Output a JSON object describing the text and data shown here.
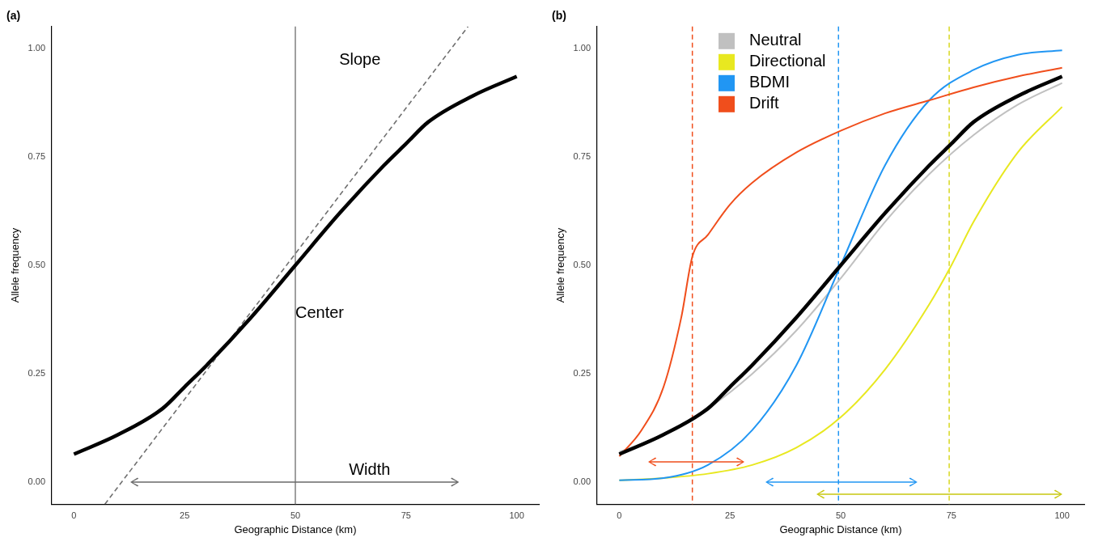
{
  "chart_data": [
    {
      "type": "line",
      "title": "(a)",
      "xlabel": "Geographic Distance (km)",
      "ylabel": "Allele frequency",
      "xlim": [
        -5,
        105
      ],
      "ylim": [
        -0.05,
        1.05
      ],
      "xticks": [
        0,
        25,
        50,
        75,
        100
      ],
      "yticks": [
        {
          "value": 0,
          "label": "0.00"
        },
        {
          "value": 0.25,
          "label": "0.25"
        },
        {
          "value": 0.5,
          "label": "0.50"
        },
        {
          "value": 0.75,
          "label": "0.75"
        },
        {
          "value": 1,
          "label": "1.00"
        }
      ],
      "grid": false,
      "legend": false,
      "series": [
        {
          "color": "#000000",
          "x": [
            0,
            10,
            20,
            25,
            30,
            40,
            50,
            60,
            70,
            75,
            80,
            90,
            100
          ],
          "values": [
            0.065,
            0.11,
            0.17,
            0.22,
            0.27,
            0.38,
            0.5,
            0.62,
            0.73,
            0.78,
            0.83,
            0.89,
            0.935
          ]
        },
        {
          "color": "#707070",
          "line_style": "dashed",
          "x": [
            7,
            89
          ],
          "values": [
            -0.05,
            1.05
          ]
        }
      ],
      "ref_lines": [
        {
          "axis": "x",
          "value": 50,
          "color": "#808080",
          "line_style": "solid"
        }
      ],
      "annotations": [
        "Slope",
        "Center",
        "Width"
      ]
    },
    {
      "type": "line",
      "title": "(b)",
      "xlabel": "Geographic Distance (km)",
      "ylabel": "Allele frequency",
      "xlim": [
        -5,
        105
      ],
      "ylim": [
        -0.05,
        1.05
      ],
      "xticks": [
        0,
        25,
        50,
        75,
        100
      ],
      "yticks": [
        {
          "value": 0,
          "label": "0.00"
        },
        {
          "value": 0.25,
          "label": "0.25"
        },
        {
          "value": 0.5,
          "label": "0.50"
        },
        {
          "value": 0.75,
          "label": "0.75"
        },
        {
          "value": 1,
          "label": "1.00"
        }
      ],
      "grid": false,
      "legend": "top left",
      "series": [
        {
          "name": "Neutral",
          "color": "#c0c0c0",
          "x": [
            0,
            10,
            20,
            30,
            40,
            50,
            60,
            70,
            80,
            90,
            100
          ],
          "values": [
            0.07,
            0.11,
            0.17,
            0.25,
            0.35,
            0.47,
            0.6,
            0.71,
            0.8,
            0.87,
            0.92
          ]
        },
        {
          "name": "Directional",
          "color": "#e8e820",
          "x": [
            0,
            10,
            20,
            30,
            40,
            50,
            60,
            70,
            75,
            80,
            90,
            100
          ],
          "values": [
            0.005,
            0.01,
            0.02,
            0.04,
            0.08,
            0.15,
            0.26,
            0.41,
            0.5,
            0.6,
            0.76,
            0.865
          ]
        },
        {
          "name": "BDMI",
          "color": "#2196f3",
          "x": [
            0,
            10,
            20,
            30,
            40,
            50,
            60,
            70,
            80,
            90,
            100
          ],
          "values": [
            0.005,
            0.01,
            0.04,
            0.12,
            0.27,
            0.5,
            0.73,
            0.88,
            0.95,
            0.985,
            0.995
          ]
        },
        {
          "name": "Drift",
          "color": "#f04e1c",
          "x": [
            0,
            5,
            10,
            14,
            16.5,
            20,
            25,
            30,
            40,
            50,
            60,
            70,
            80,
            90,
            100
          ],
          "values": [
            0.06,
            0.12,
            0.22,
            0.38,
            0.52,
            0.57,
            0.64,
            0.69,
            0.76,
            0.81,
            0.85,
            0.88,
            0.91,
            0.935,
            0.955
          ]
        },
        {
          "color": "#000000",
          "x": [
            0,
            10,
            20,
            25,
            30,
            40,
            50,
            60,
            70,
            75,
            80,
            90,
            100
          ],
          "values": [
            0.065,
            0.11,
            0.17,
            0.22,
            0.27,
            0.38,
            0.5,
            0.62,
            0.73,
            0.78,
            0.83,
            0.89,
            0.935
          ]
        }
      ],
      "ref_lines": [
        {
          "axis": "x",
          "value": 16.5,
          "color": "#f04e1c",
          "line_style": "dashed"
        },
        {
          "axis": "x",
          "value": 49.5,
          "color": "#2196f3",
          "line_style": "dashed"
        },
        {
          "axis": "x",
          "value": 74.5,
          "color": "#d8d820",
          "line_style": "dashed"
        }
      ]
    }
  ]
}
